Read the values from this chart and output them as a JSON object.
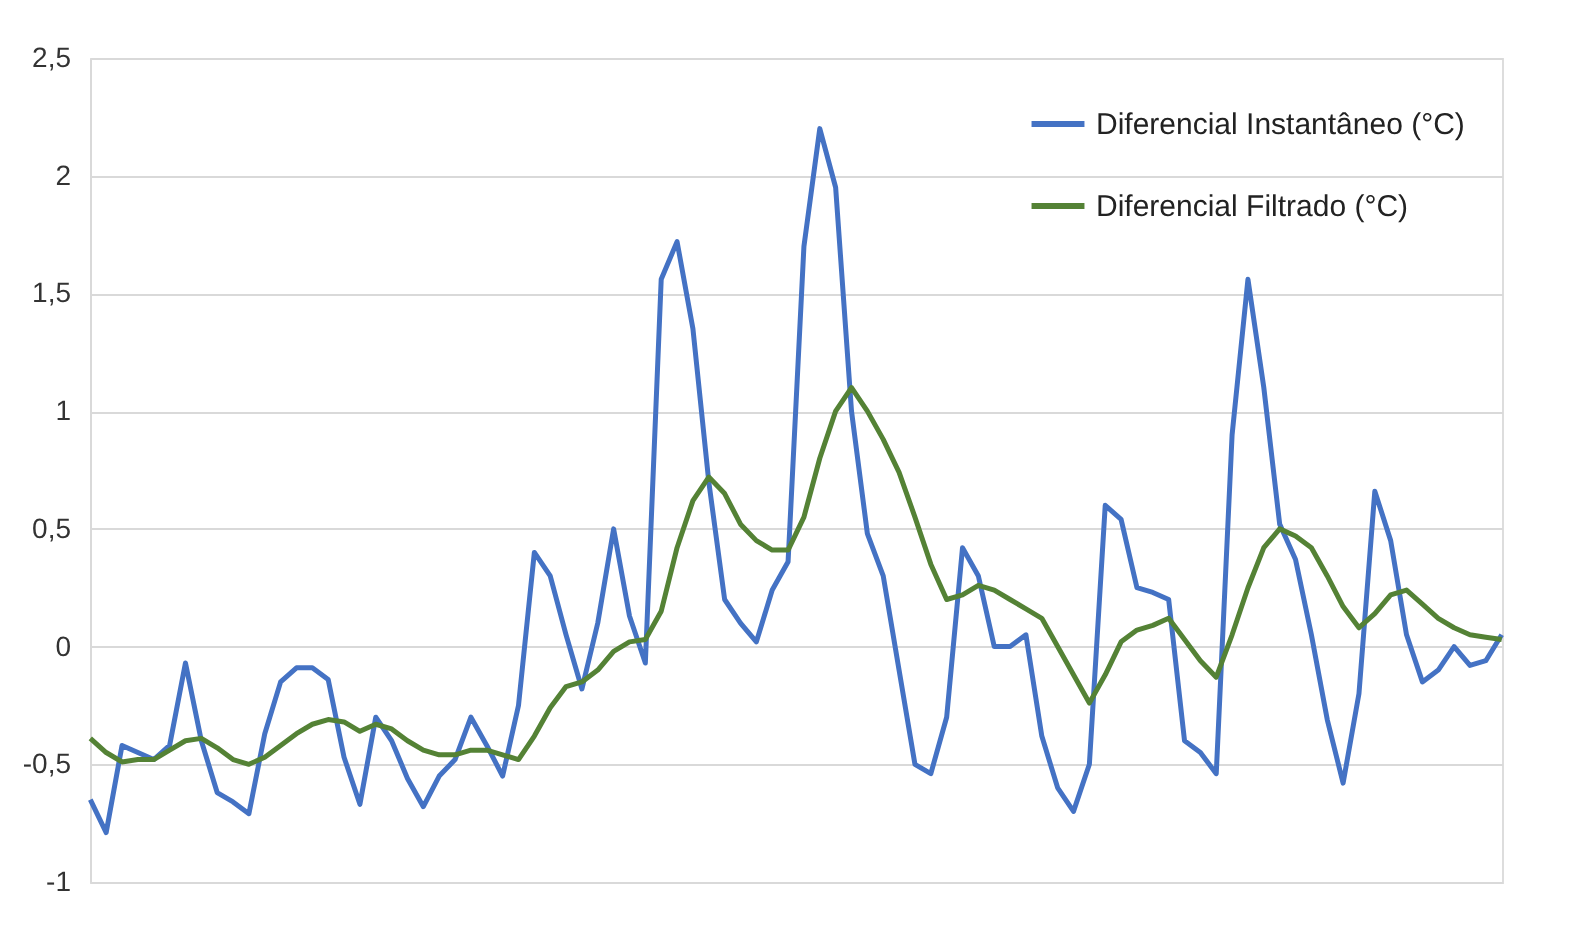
{
  "chart_data": {
    "type": "line",
    "categories": [
      null,
      null,
      null,
      null,
      null,
      null,
      null,
      null,
      null,
      null,
      null,
      null,
      null,
      null,
      null,
      null,
      null,
      null,
      null,
      null,
      null,
      null,
      null,
      null,
      null,
      null,
      null,
      null,
      null,
      null,
      null,
      null,
      null,
      null,
      null,
      null,
      null,
      null,
      null,
      null,
      null,
      null,
      null,
      null,
      null,
      null,
      null,
      null,
      null,
      null,
      null,
      null,
      null,
      null,
      null,
      null,
      null,
      null,
      null,
      null,
      null,
      null,
      null,
      null,
      null,
      null,
      null,
      null,
      null,
      null,
      null,
      null,
      null,
      null,
      null,
      null,
      null,
      null,
      null,
      null,
      null,
      null,
      null,
      null,
      null,
      null,
      null,
      null,
      null,
      null
    ],
    "series": [
      {
        "name": "Diferencial Instantâneo (°C)",
        "color": "#4472c4",
        "values": [
          -0.65,
          -0.79,
          -0.42,
          -0.45,
          -0.48,
          -0.42,
          -0.07,
          -0.4,
          -0.62,
          -0.66,
          -0.71,
          -0.37,
          -0.15,
          -0.09,
          -0.09,
          -0.14,
          -0.47,
          -0.67,
          -0.3,
          -0.4,
          -0.56,
          -0.68,
          -0.55,
          -0.48,
          -0.3,
          -0.42,
          -0.55,
          -0.25,
          0.4,
          0.3,
          0.05,
          -0.18,
          0.1,
          0.5,
          0.13,
          -0.07,
          1.56,
          1.72,
          1.35,
          0.7,
          0.2,
          0.1,
          0.02,
          0.24,
          0.36,
          1.7,
          2.2,
          1.95,
          1.0,
          0.48,
          0.3,
          -0.1,
          -0.5,
          -0.54,
          -0.3,
          0.42,
          0.3,
          0.0,
          0.0,
          0.05,
          -0.38,
          -0.6,
          -0.7,
          -0.5,
          0.6,
          0.54,
          0.25,
          0.23,
          0.2,
          -0.4,
          -0.45,
          -0.54,
          0.9,
          1.56,
          1.1,
          0.52,
          0.37,
          0.05,
          -0.31,
          -0.58,
          -0.2,
          0.66,
          0.45,
          0.05,
          -0.15,
          -0.1,
          0.0,
          -0.08,
          -0.06,
          0.05
        ]
      },
      {
        "name": "Diferencial Filtrado (°C)",
        "color": "#548235",
        "values": [
          -0.39,
          -0.45,
          -0.49,
          -0.48,
          -0.48,
          -0.44,
          -0.4,
          -0.39,
          -0.43,
          -0.48,
          -0.5,
          -0.47,
          -0.42,
          -0.37,
          -0.33,
          -0.31,
          -0.32,
          -0.36,
          -0.33,
          -0.35,
          -0.4,
          -0.44,
          -0.46,
          -0.46,
          -0.44,
          -0.44,
          -0.46,
          -0.48,
          -0.38,
          -0.26,
          -0.17,
          -0.15,
          -0.1,
          -0.02,
          0.02,
          0.03,
          0.15,
          0.42,
          0.62,
          0.72,
          0.65,
          0.52,
          0.45,
          0.41,
          0.41,
          0.55,
          0.8,
          1.0,
          1.1,
          1.0,
          0.88,
          0.74,
          0.55,
          0.35,
          0.2,
          0.22,
          0.26,
          0.24,
          0.2,
          0.16,
          0.12,
          0.0,
          -0.12,
          -0.24,
          -0.12,
          0.02,
          0.07,
          0.09,
          0.12,
          0.03,
          -0.06,
          -0.13,
          0.05,
          0.25,
          0.42,
          0.5,
          0.47,
          0.42,
          0.3,
          0.17,
          0.08,
          0.14,
          0.22,
          0.24,
          0.18,
          0.12,
          0.08,
          0.05,
          0.04,
          0.03
        ]
      }
    ],
    "ylim": [
      -1,
      2.5
    ],
    "yticks": [
      {
        "value": -1,
        "label": "-1"
      },
      {
        "value": -0.5,
        "label": "-0,5"
      },
      {
        "value": 0,
        "label": "0"
      },
      {
        "value": 0.5,
        "label": "0,5"
      },
      {
        "value": 1,
        "label": "1"
      },
      {
        "value": 1.5,
        "label": "1,5"
      },
      {
        "value": 2,
        "label": "2"
      },
      {
        "value": 2.5,
        "label": "2,5"
      }
    ],
    "grid": "y",
    "legend": "top right",
    "marker": "none",
    "line_style": "solid"
  }
}
